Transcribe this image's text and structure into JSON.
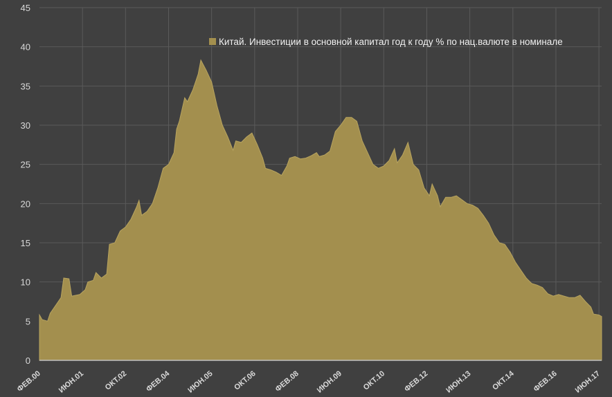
{
  "chart_data": {
    "type": "area",
    "title": "",
    "xlabel": "",
    "ylabel": "",
    "ylim": [
      0,
      45
    ],
    "yticks": [
      "0",
      "5",
      "10",
      "15",
      "20",
      "25",
      "30",
      "35",
      "40",
      "45"
    ],
    "xtick_labels": [
      "ФЕВ.00",
      "ИЮН.01",
      "ОКТ.02",
      "ФЕВ.04",
      "ИЮН.05",
      "ОКТ.06",
      "ФЕВ.08",
      "ИЮН.09",
      "ОКТ.10",
      "ФЕВ.12",
      "ИЮН.13",
      "ОКТ.14",
      "ФЕВ.16",
      "ИЮН.17"
    ],
    "grid": true,
    "legend_position": "top-right",
    "colors": {
      "background": "#404040",
      "series": "#a38f4e",
      "grid": "#5a5a5a",
      "axis": "#bfbfbf"
    },
    "series": [
      {
        "name": "Китай. Инвестиции в основной капитал год к году % по нац.валюте в номинале",
        "points": [
          [
            "2000-02",
            5.8
          ],
          [
            "2000-03",
            5.2
          ],
          [
            "2000-05",
            5.0
          ],
          [
            "2000-06",
            6.0
          ],
          [
            "2000-08",
            7.0
          ],
          [
            "2000-10",
            8.0
          ],
          [
            "2000-11",
            10.5
          ],
          [
            "2001-01",
            10.4
          ],
          [
            "2001-02",
            8.2
          ],
          [
            "2001-05",
            8.4
          ],
          [
            "2001-07",
            9.0
          ],
          [
            "2001-08",
            10.0
          ],
          [
            "2001-10",
            10.2
          ],
          [
            "2001-11",
            11.2
          ],
          [
            "2002-01",
            10.5
          ],
          [
            "2002-03",
            11.0
          ],
          [
            "2002-04",
            14.8
          ],
          [
            "2002-06",
            15.0
          ],
          [
            "2002-08",
            16.5
          ],
          [
            "2002-10",
            17.0
          ],
          [
            "2002-12",
            18.0
          ],
          [
            "2003-02",
            19.5
          ],
          [
            "2003-03",
            20.4
          ],
          [
            "2003-04",
            18.5
          ],
          [
            "2003-06",
            19.0
          ],
          [
            "2003-08",
            20.0
          ],
          [
            "2003-10",
            22.0
          ],
          [
            "2003-12",
            24.5
          ],
          [
            "2004-02",
            25.0
          ],
          [
            "2004-04",
            26.5
          ],
          [
            "2004-05",
            29.5
          ],
          [
            "2004-06",
            30.5
          ],
          [
            "2004-08",
            33.5
          ],
          [
            "2004-09",
            33.0
          ],
          [
            "2004-11",
            34.5
          ],
          [
            "2005-01",
            36.5
          ],
          [
            "2005-02",
            38.3
          ],
          [
            "2005-04",
            37.0
          ],
          [
            "2005-06",
            35.5
          ],
          [
            "2005-08",
            32.5
          ],
          [
            "2005-10",
            30.0
          ],
          [
            "2005-12",
            28.5
          ],
          [
            "2006-02",
            26.8
          ],
          [
            "2006-03",
            28.0
          ],
          [
            "2006-05",
            27.8
          ],
          [
            "2006-07",
            28.5
          ],
          [
            "2006-09",
            29.0
          ],
          [
            "2006-11",
            27.5
          ],
          [
            "2007-01",
            25.8
          ],
          [
            "2007-02",
            24.5
          ],
          [
            "2007-04",
            24.3
          ],
          [
            "2007-06",
            24.0
          ],
          [
            "2007-08",
            23.6
          ],
          [
            "2007-10",
            24.8
          ],
          [
            "2007-11",
            25.8
          ],
          [
            "2008-01",
            26.0
          ],
          [
            "2008-03",
            25.7
          ],
          [
            "2008-05",
            25.8
          ],
          [
            "2008-07",
            26.1
          ],
          [
            "2008-09",
            26.5
          ],
          [
            "2008-10",
            26.0
          ],
          [
            "2008-12",
            26.2
          ],
          [
            "2009-02",
            26.7
          ],
          [
            "2009-04",
            29.2
          ],
          [
            "2009-06",
            30.0
          ],
          [
            "2009-08",
            31.0
          ],
          [
            "2009-10",
            31.0
          ],
          [
            "2009-12",
            30.5
          ],
          [
            "2010-02",
            28.0
          ],
          [
            "2010-04",
            26.5
          ],
          [
            "2010-06",
            25.0
          ],
          [
            "2010-08",
            24.5
          ],
          [
            "2010-10",
            24.8
          ],
          [
            "2010-12",
            25.5
          ],
          [
            "2011-02",
            27.0
          ],
          [
            "2011-03",
            25.2
          ],
          [
            "2011-05",
            26.2
          ],
          [
            "2011-07",
            27.8
          ],
          [
            "2011-09",
            25.0
          ],
          [
            "2011-11",
            24.3
          ],
          [
            "2012-01",
            22.0
          ],
          [
            "2012-03",
            21.0
          ],
          [
            "2012-04",
            22.5
          ],
          [
            "2012-06",
            21.0
          ],
          [
            "2012-07",
            19.6
          ],
          [
            "2012-09",
            20.8
          ],
          [
            "2012-11",
            20.8
          ],
          [
            "2013-01",
            21.0
          ],
          [
            "2013-03",
            20.5
          ],
          [
            "2013-05",
            20.0
          ],
          [
            "2013-07",
            19.8
          ],
          [
            "2013-09",
            19.4
          ],
          [
            "2013-11",
            18.5
          ],
          [
            "2014-01",
            17.5
          ],
          [
            "2014-03",
            16.0
          ],
          [
            "2014-05",
            15.0
          ],
          [
            "2014-07",
            14.8
          ],
          [
            "2014-09",
            13.8
          ],
          [
            "2014-11",
            12.5
          ],
          [
            "2015-01",
            11.5
          ],
          [
            "2015-03",
            10.5
          ],
          [
            "2015-05",
            9.8
          ],
          [
            "2015-07",
            9.6
          ],
          [
            "2015-09",
            9.3
          ],
          [
            "2015-11",
            8.5
          ],
          [
            "2016-01",
            8.2
          ],
          [
            "2016-03",
            8.4
          ],
          [
            "2016-05",
            8.2
          ],
          [
            "2016-07",
            8.0
          ],
          [
            "2016-09",
            8.0
          ],
          [
            "2016-11",
            8.3
          ],
          [
            "2017-01",
            7.5
          ],
          [
            "2017-03",
            6.8
          ],
          [
            "2017-04",
            5.9
          ],
          [
            "2017-06",
            5.8
          ],
          [
            "2017-07",
            5.6
          ]
        ]
      }
    ]
  }
}
